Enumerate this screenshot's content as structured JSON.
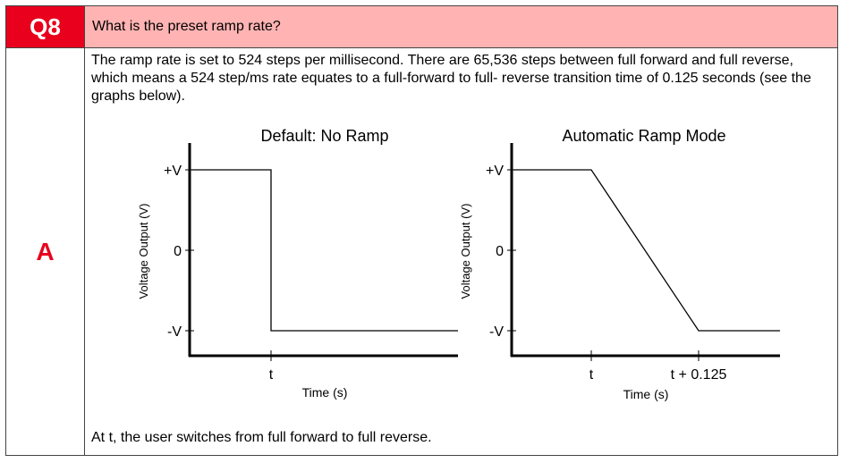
{
  "question": {
    "label": "Q8",
    "text": "What is the preset ramp rate?"
  },
  "answer": {
    "label": "A",
    "text": "The ramp rate is set to 524 steps per millisecond. There are 65,536 steps between full forward and full reverse, which means a 524 step/ms rate equates to a full-forward to full- reverse transition time of 0.125 seconds (see the graphs below).",
    "footer": "At t, the user switches from full forward to full reverse."
  },
  "colors": {
    "question_label_bg": "#e8001c",
    "question_text_bg": "#ffb3b3",
    "answer_label": "#e8001c"
  },
  "chart_data": [
    {
      "type": "line",
      "title": "Default: No Ramp",
      "xlabel": "Time (s)",
      "ylabel": "Voltage Output (V)",
      "y_ticks": [
        "+V",
        "0",
        "-V"
      ],
      "x_ticks": [
        "t"
      ],
      "series": [
        {
          "points": [
            [
              "start",
              "+V"
            ],
            [
              "t",
              "+V"
            ],
            [
              "t",
              "-V"
            ],
            [
              "end",
              "-V"
            ]
          ]
        }
      ]
    },
    {
      "type": "line",
      "title": "Automatic Ramp Mode",
      "xlabel": "Time (s)",
      "ylabel": "Voltage Output (V)",
      "y_ticks": [
        "+V",
        "0",
        "-V"
      ],
      "x_ticks": [
        "t",
        "t + 0.125"
      ],
      "series": [
        {
          "points": [
            [
              "start",
              "+V"
            ],
            [
              "t",
              "+V"
            ],
            [
              "t + 0.125",
              "-V"
            ],
            [
              "end",
              "-V"
            ]
          ]
        }
      ]
    }
  ]
}
